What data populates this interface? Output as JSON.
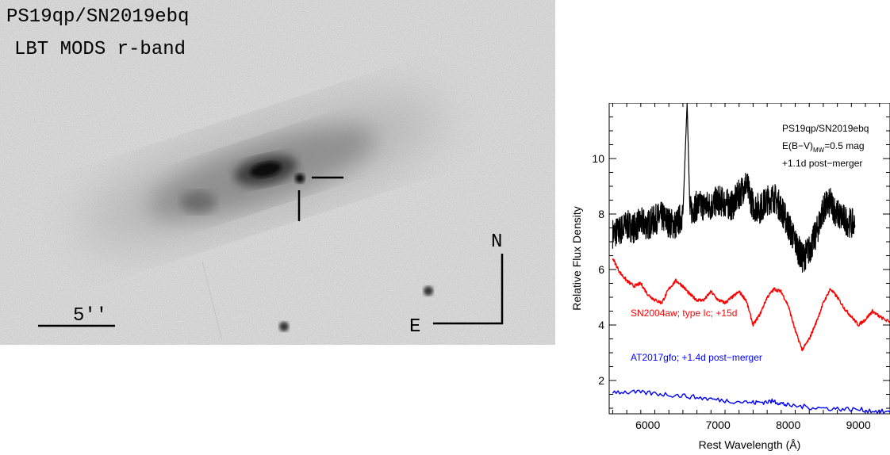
{
  "image_panel": {
    "title_line1": "PS19qp/SN2019ebq",
    "title_line2": "LBT MODS r-band",
    "scale_bar_label": "5′′",
    "compass_north": "N",
    "compass_east": "E"
  },
  "chart_data": {
    "type": "line",
    "title": "",
    "xlabel": "Rest Wavelength (Å)",
    "ylabel": "Relative Flux Density",
    "xlim": [
      5450,
      9450
    ],
    "ylim": [
      0.8,
      12
    ],
    "x_ticks": [
      6000,
      7000,
      8000,
      9000
    ],
    "y_ticks": [
      2,
      4,
      6,
      8,
      10
    ],
    "annotations": [
      "PS19qp/SN2019ebq",
      "E(B−V)",
      "MW",
      "=0.5 mag",
      "+1.1d post−merger"
    ],
    "series": [
      {
        "name": "",
        "color": "#000000",
        "x": [
          5500,
          5600,
          5700,
          5800,
          5900,
          6000,
          6100,
          6200,
          6300,
          6400,
          6500,
          6560,
          6600,
          6700,
          6800,
          6900,
          7000,
          7100,
          7200,
          7300,
          7400,
          7500,
          7600,
          7700,
          7800,
          7900,
          8000,
          8100,
          8200,
          8300,
          8400,
          8500,
          8600,
          8700,
          8800,
          8950
        ],
        "y": [
          7.3,
          7.4,
          7.6,
          7.5,
          7.7,
          7.6,
          7.8,
          7.9,
          7.7,
          7.6,
          8.0,
          12.0,
          8.1,
          8.3,
          8.3,
          8.3,
          8.5,
          8.4,
          8.3,
          8.7,
          9.1,
          8.3,
          8.2,
          8.5,
          8.6,
          8.2,
          7.6,
          7.0,
          6.4,
          6.7,
          7.3,
          8.2,
          8.4,
          8.0,
          7.8,
          7.6
        ]
      },
      {
        "name": "SN2004aw; type Ic; +15d",
        "color": "#ff0000",
        "x": [
          5500,
          5600,
          5700,
          5800,
          5900,
          6000,
          6100,
          6200,
          6300,
          6400,
          6500,
          6600,
          6700,
          6800,
          6900,
          7000,
          7100,
          7200,
          7300,
          7400,
          7500,
          7600,
          7700,
          7800,
          7900,
          8000,
          8100,
          8200,
          8300,
          8400,
          8500,
          8600,
          8700,
          8800,
          8900,
          9000,
          9100,
          9200,
          9300,
          9450
        ],
        "y": [
          6.4,
          5.9,
          5.6,
          5.4,
          5.5,
          5.1,
          4.9,
          4.8,
          5.3,
          5.6,
          5.4,
          5.1,
          4.9,
          4.9,
          5.2,
          4.9,
          4.8,
          5.0,
          5.2,
          4.9,
          4.0,
          4.4,
          5.0,
          5.3,
          5.2,
          4.7,
          3.8,
          3.1,
          3.5,
          4.1,
          4.8,
          5.3,
          5.0,
          4.6,
          4.3,
          4.0,
          4.2,
          4.5,
          4.3,
          4.1
        ]
      },
      {
        "name": "AT2017gfo; +1.4d post−merger",
        "color": "#0000ff",
        "x": [
          5500,
          6000,
          6500,
          7000,
          7500,
          7800,
          8000,
          8500,
          9000,
          9450
        ],
        "y": [
          1.6,
          1.55,
          1.45,
          1.3,
          1.2,
          1.25,
          1.1,
          1.0,
          0.95,
          0.85
        ]
      }
    ]
  }
}
